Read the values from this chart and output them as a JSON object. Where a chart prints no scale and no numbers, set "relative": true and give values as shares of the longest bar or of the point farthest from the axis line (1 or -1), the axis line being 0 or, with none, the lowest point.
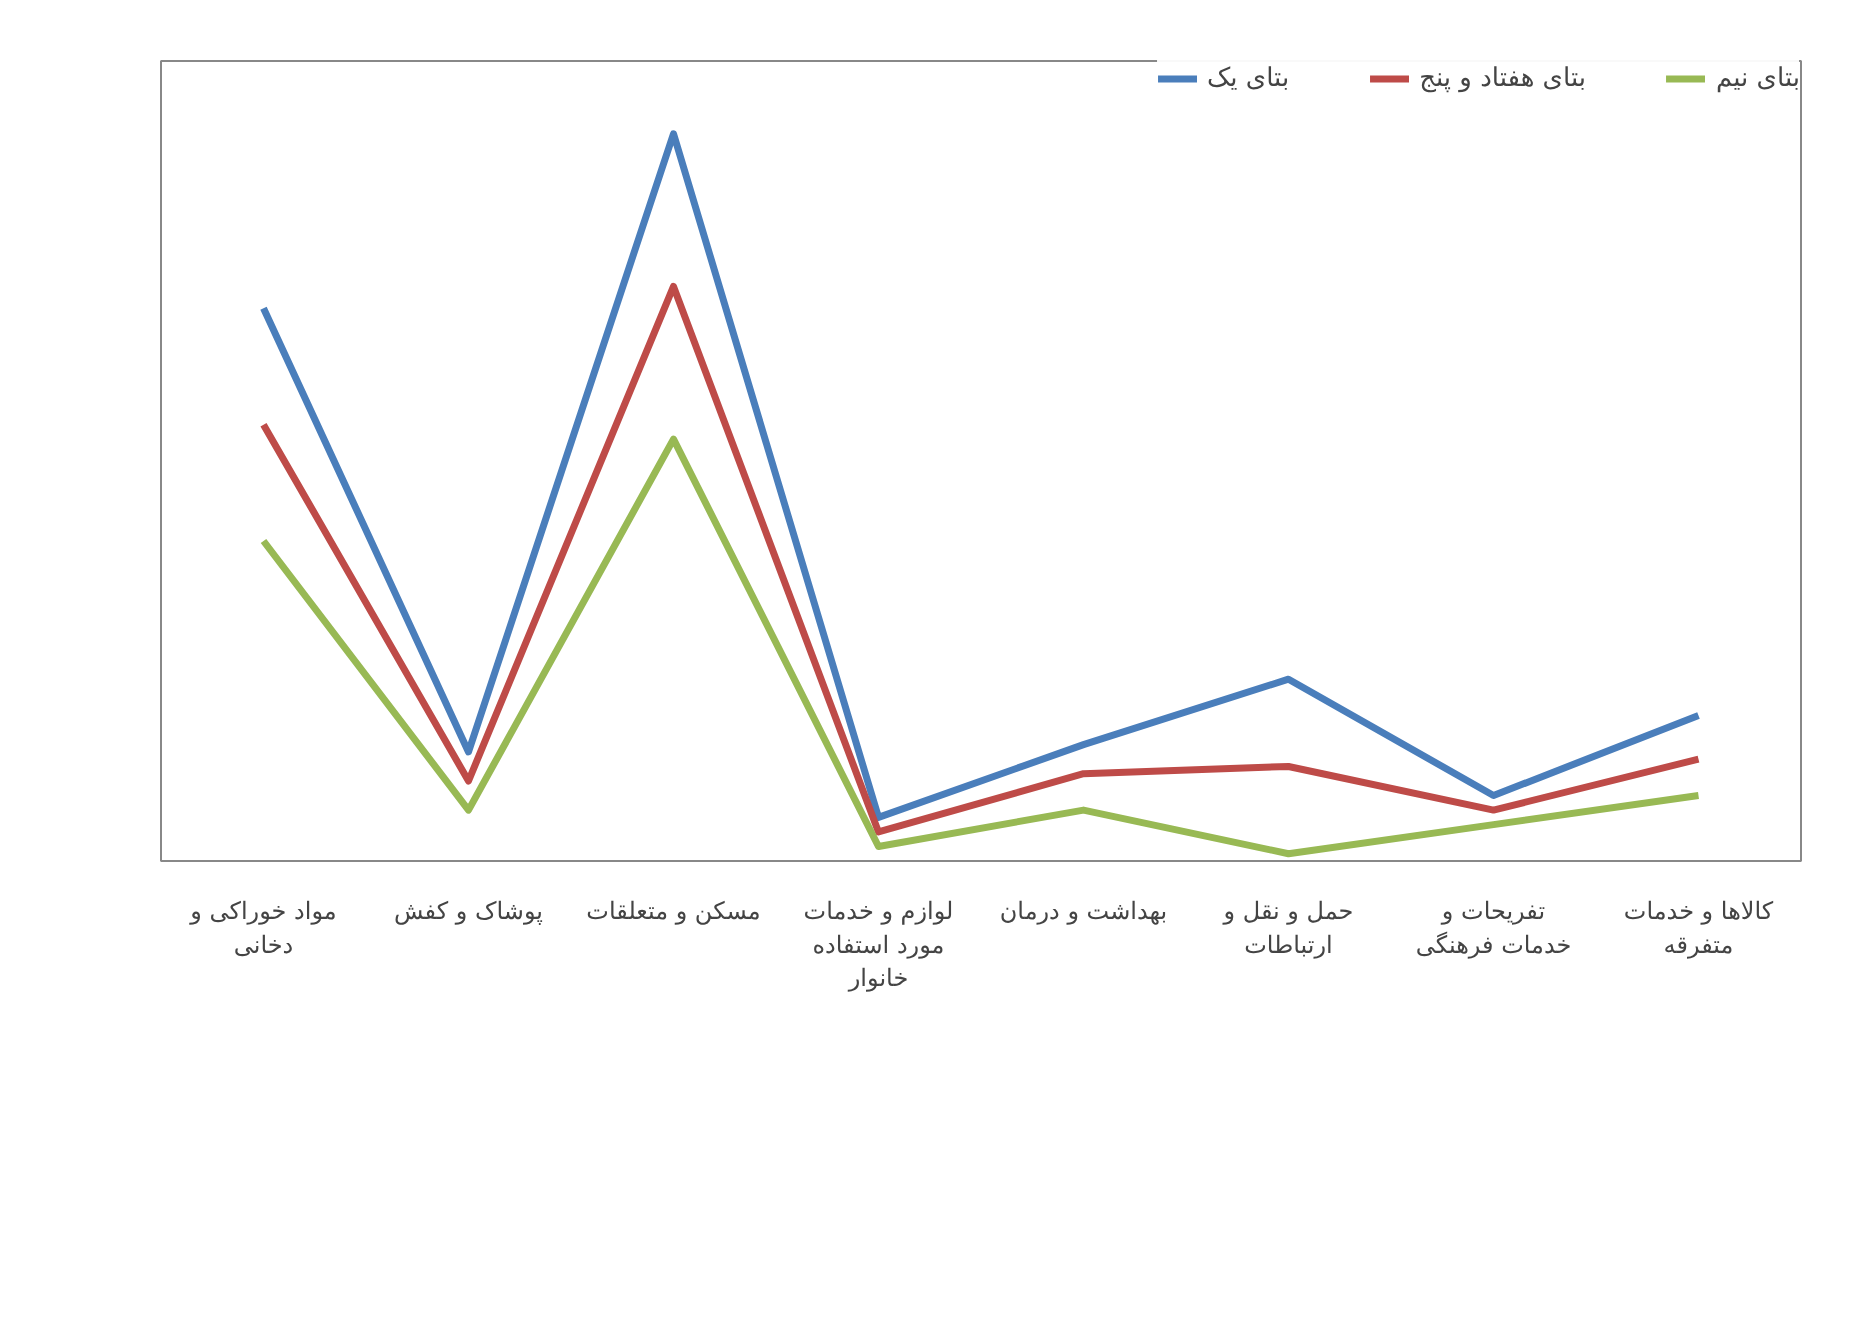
{
  "chart_data": {
    "type": "line",
    "relative": true,
    "legend": "top right",
    "categories": [
      "مواد خوراکی و دخانی",
      "پوشاک و کفش",
      "مسکن و متعلقات",
      "لوازم و خدمات مورد استفاده خانوار",
      "بهداشت و درمان",
      "حمل و نقل و ارتباطات",
      "تفریحات و خدمات فرهنگی",
      "کالاها و خدمات متفرقه"
    ],
    "series": [
      {
        "name": "بتای یک",
        "color": "#4a7ebb",
        "values": [
          0.76,
          0.15,
          1,
          0.06,
          0.16,
          0.25,
          0.09,
          0.2
        ]
      },
      {
        "name": "بتای هفتاد و پنج",
        "color": "#be4b48",
        "values": [
          0.6,
          0.11,
          0.79,
          0.04,
          0.12,
          0.13,
          0.07,
          0.14
        ]
      },
      {
        "name": "بتای نیم",
        "color": "#98b954",
        "values": [
          0.44,
          0.07,
          0.58,
          0.02,
          0.07,
          0.01,
          0.05,
          0.09
        ]
      }
    ]
  }
}
